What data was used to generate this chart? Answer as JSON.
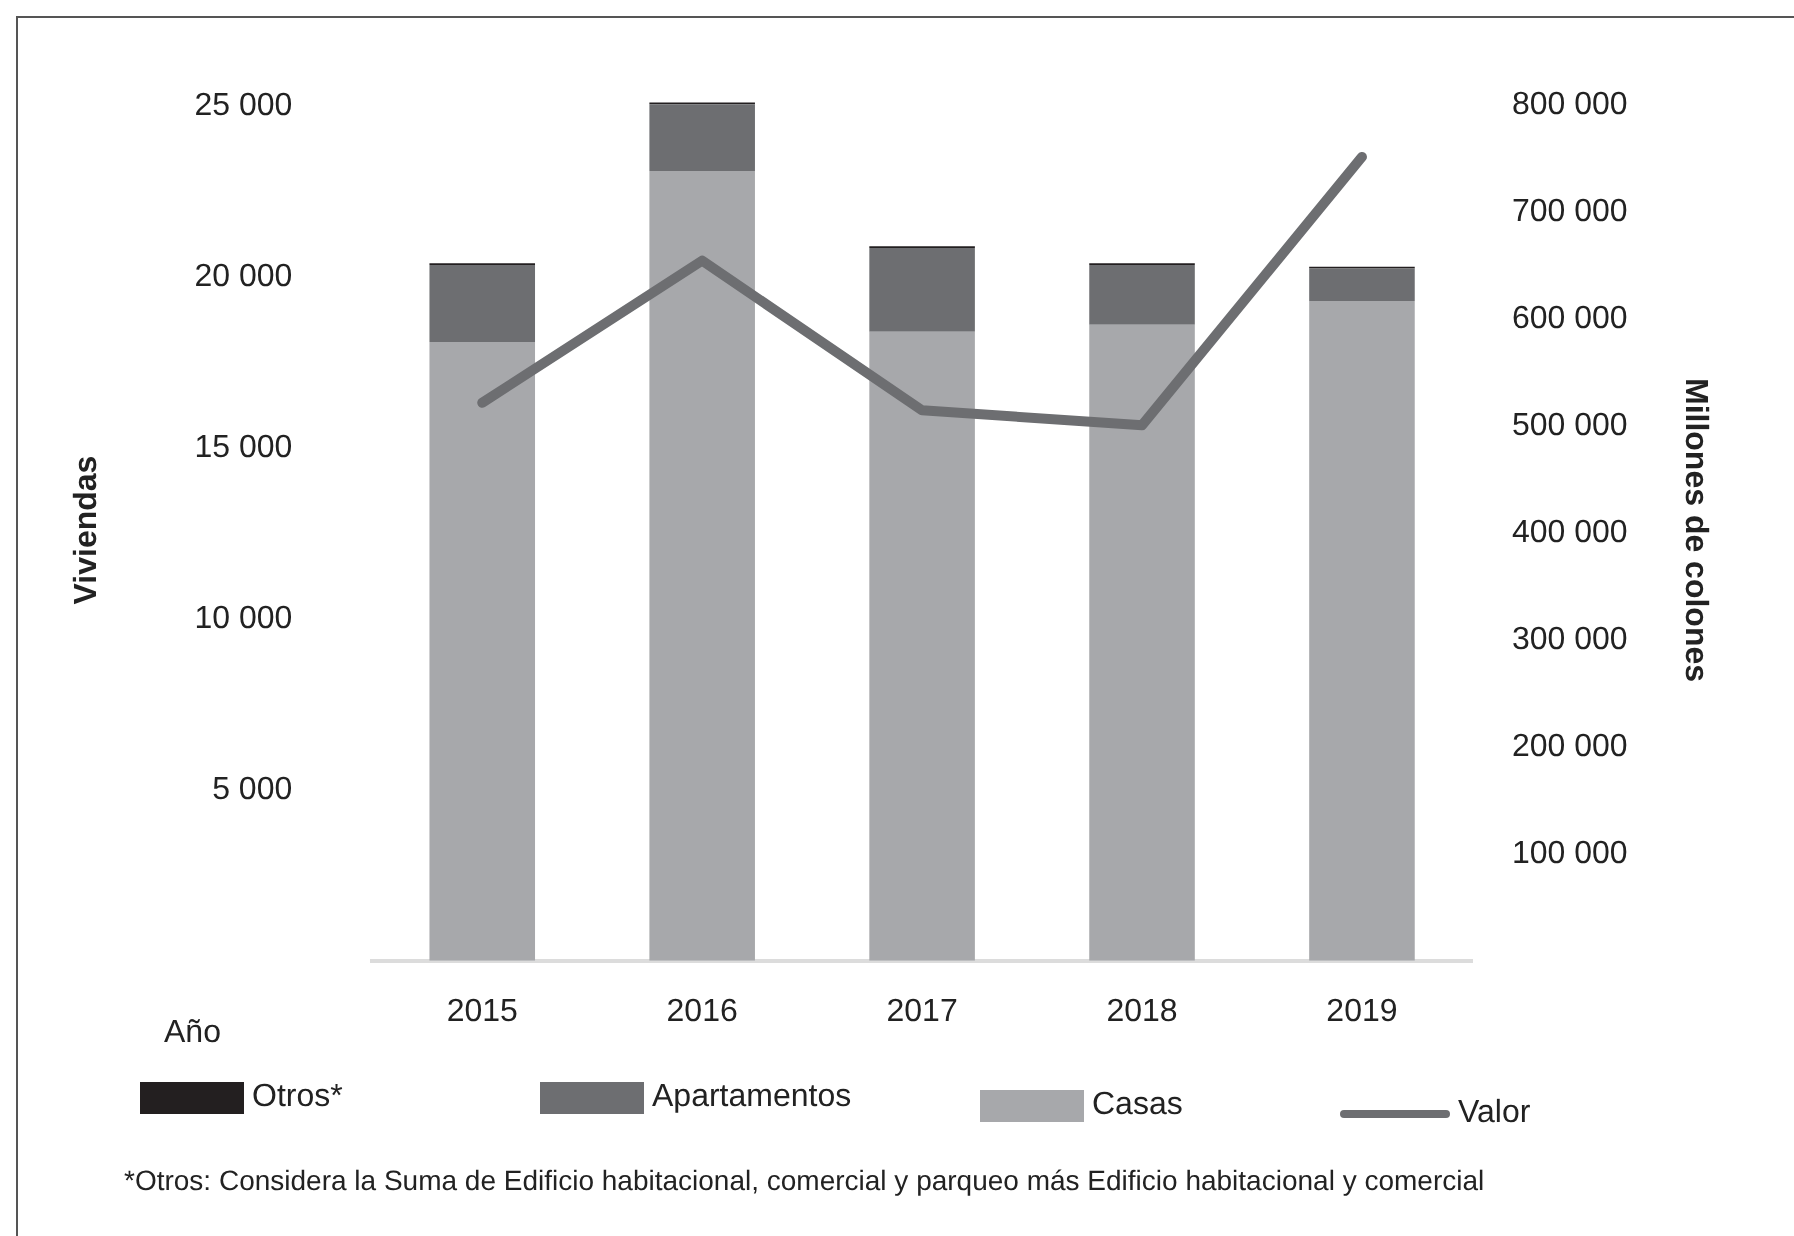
{
  "chart_data": {
    "type": "bar",
    "stacked": true,
    "xlabel": "Año",
    "ylabel": "Viviendas",
    "y2label": "Millones de colones",
    "categories": [
      "2015",
      "2016",
      "2017",
      "2018",
      "2019"
    ],
    "series": [
      {
        "name": "Casas",
        "color": "#a7a8ab",
        "values": [
          18100,
          23100,
          18400,
          18600,
          19300
        ]
      },
      {
        "name": "Apartamentos",
        "color": "#6d6e71",
        "values": [
          2250,
          1950,
          2450,
          1750,
          950
        ]
      },
      {
        "name": "Otros*",
        "color": "#231f20",
        "values": [
          50,
          50,
          50,
          50,
          50
        ]
      },
      {
        "name": "Valor",
        "type": "line",
        "axis": "y2",
        "color": "#6d6e71",
        "values": [
          522000,
          655000,
          515000,
          501000,
          752000
        ]
      }
    ],
    "ylim": [
      0,
      25200
    ],
    "yticks": [
      {
        "value": 5000,
        "label": "5 000"
      },
      {
        "value": 10000,
        "label": "10 000"
      },
      {
        "value": 15000,
        "label": "15 000"
      },
      {
        "value": 20000,
        "label": "20 000"
      },
      {
        "value": 25000,
        "label": "25 000"
      }
    ],
    "y2lim": [
      0,
      806000
    ],
    "y2ticks": [
      {
        "value": 100000,
        "label": "100 000"
      },
      {
        "value": 200000,
        "label": "200 000"
      },
      {
        "value": 300000,
        "label": "300 000"
      },
      {
        "value": 400000,
        "label": "400 000"
      },
      {
        "value": 500000,
        "label": "500 000"
      },
      {
        "value": 600000,
        "label": "600 000"
      },
      {
        "value": 700000,
        "label": "700 000"
      },
      {
        "value": 800000,
        "label": "800 000"
      }
    ],
    "grid": false,
    "legend": "bottom",
    "marker": "none",
    "annotations": [
      "*Otros: Considera la Suma de Edificio habitacional, comercial y parqueo más Edificio habitacional y comercial"
    ]
  }
}
